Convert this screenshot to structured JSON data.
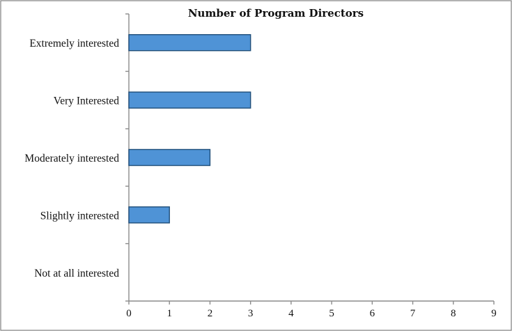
{
  "chart_data": {
    "type": "bar",
    "orientation": "horizontal",
    "title": "Number of Program Directors",
    "categories": [
      "Extremely interested",
      "Very Interested",
      "Moderately interested",
      "Slightly interested",
      "Not at all interested"
    ],
    "values": [
      3,
      3,
      2,
      1,
      0
    ],
    "xlim": [
      0,
      9
    ],
    "xticks": [
      0,
      1,
      2,
      3,
      4,
      5,
      6,
      7,
      8,
      9
    ],
    "xlabel": "",
    "ylabel": "",
    "grid": false,
    "legend": "none",
    "colors": {
      "bar_fill": "#4f93d6",
      "bar_edge": "#1f4e79"
    }
  }
}
